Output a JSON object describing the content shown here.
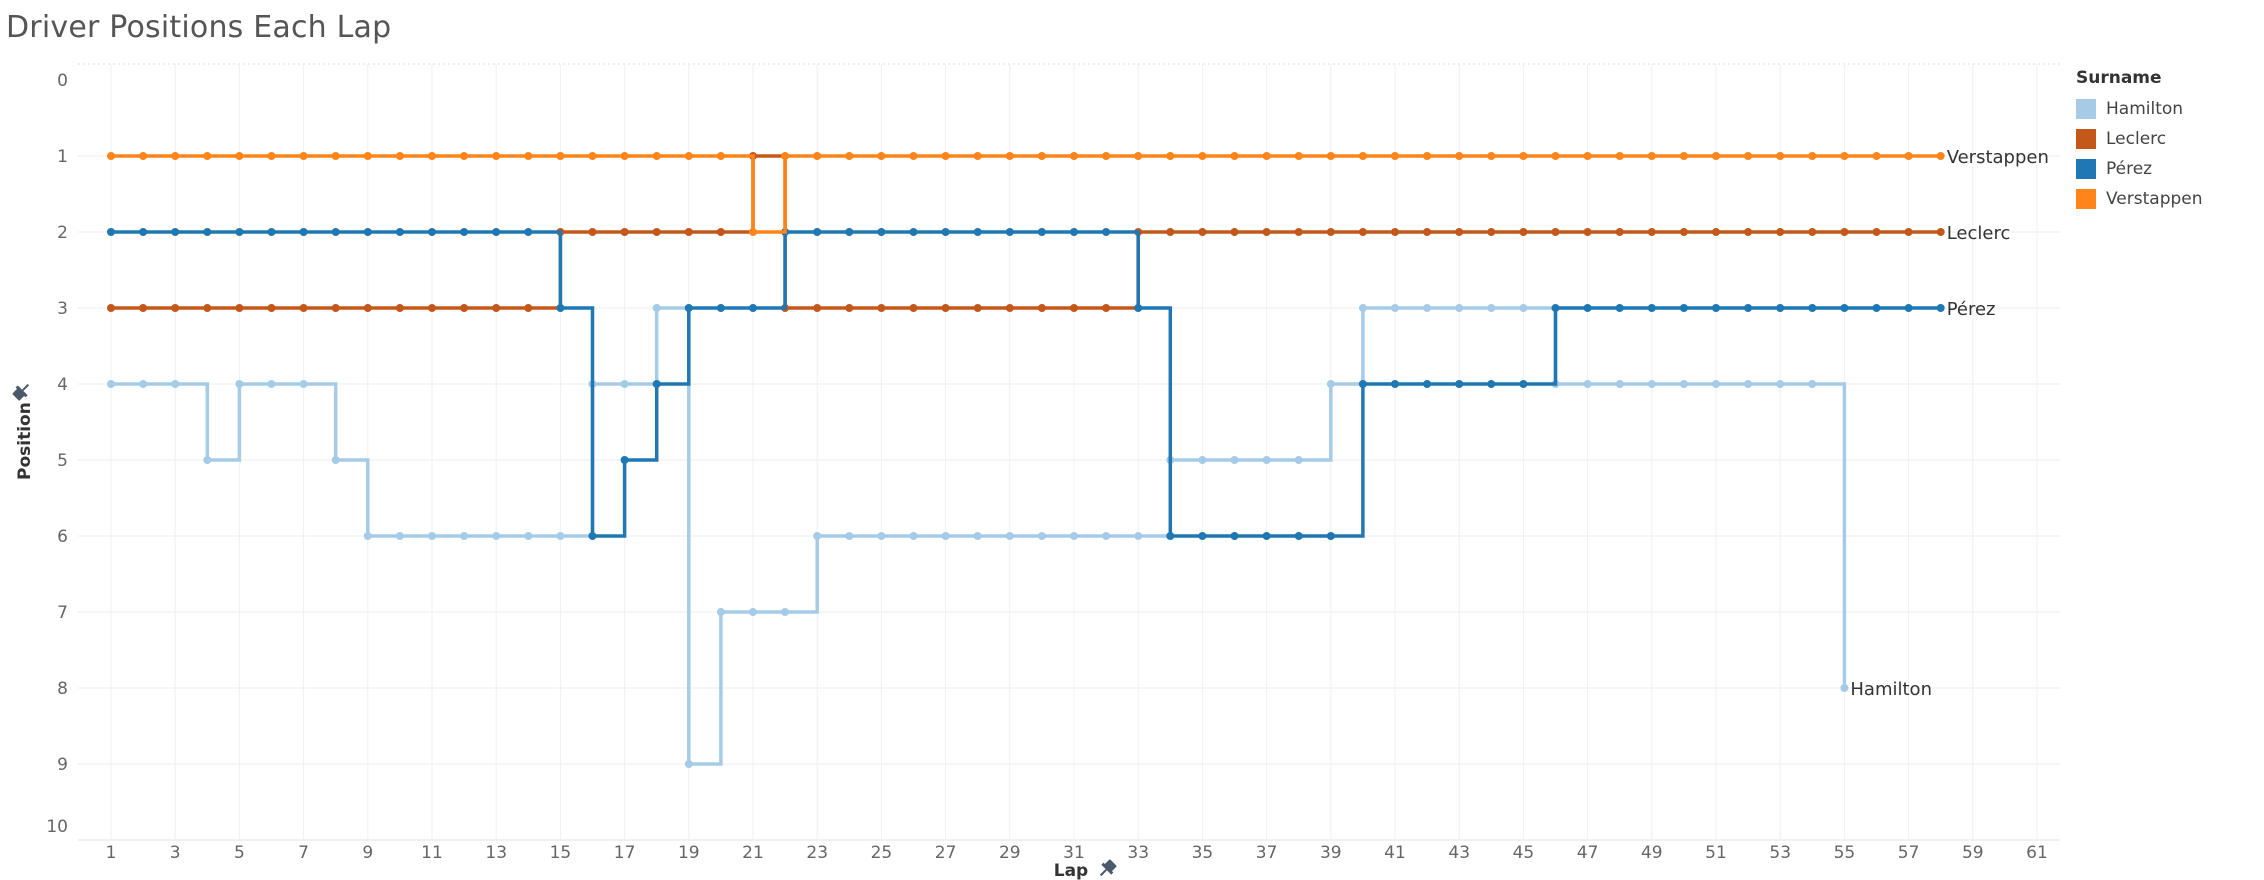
{
  "title": "Driver Positions Each Lap",
  "legend": {
    "title": "Surname",
    "items": [
      {
        "label": "Hamilton",
        "color": "#a6cbe6"
      },
      {
        "label": "Leclerc",
        "color": "#c4581a"
      },
      {
        "label": "Pérez",
        "color": "#1f77b4"
      },
      {
        "label": "Verstappen",
        "color": "#ff8419"
      }
    ]
  },
  "pin_icons": [
    "pin-icon"
  ],
  "chart_data": {
    "type": "line",
    "title": "Driver Positions Each Lap",
    "xlabel": "Lap",
    "ylabel": "Position",
    "xlim": [
      0,
      62
    ],
    "ylim": [
      10,
      0
    ],
    "y_reversed": true,
    "grid": true,
    "legend_position": "right",
    "x_ticks": [
      1,
      3,
      5,
      7,
      9,
      11,
      13,
      15,
      17,
      19,
      21,
      23,
      25,
      27,
      29,
      31,
      33,
      35,
      37,
      39,
      41,
      43,
      45,
      47,
      49,
      51,
      53,
      55,
      57,
      59,
      61
    ],
    "y_ticks": [
      0,
      1,
      2,
      3,
      4,
      5,
      6,
      7,
      8,
      9,
      10
    ],
    "line_shape": "step",
    "series": [
      {
        "name": "Hamilton",
        "color": "#a6cbe6",
        "x": [
          1,
          2,
          3,
          4,
          5,
          6,
          7,
          8,
          9,
          10,
          11,
          12,
          13,
          14,
          15,
          16,
          17,
          18,
          19,
          20,
          21,
          22,
          23,
          24,
          25,
          26,
          27,
          28,
          29,
          30,
          31,
          32,
          33,
          34,
          35,
          36,
          37,
          38,
          39,
          40,
          41,
          42,
          43,
          44,
          45,
          46,
          47,
          48,
          49,
          50,
          51,
          52,
          53,
          54,
          55
        ],
        "values": [
          4,
          4,
          4,
          5,
          4,
          4,
          4,
          5,
          6,
          6,
          6,
          6,
          6,
          6,
          6,
          4,
          4,
          3,
          9,
          7,
          7,
          7,
          6,
          6,
          6,
          6,
          6,
          6,
          6,
          6,
          6,
          6,
          6,
          5,
          5,
          5,
          5,
          5,
          4,
          3,
          3,
          3,
          3,
          3,
          3,
          4,
          4,
          4,
          4,
          4,
          4,
          4,
          4,
          4,
          8
        ],
        "end_label": "Hamilton"
      },
      {
        "name": "Leclerc",
        "color": "#c4581a",
        "x": [
          1,
          2,
          3,
          4,
          5,
          6,
          7,
          8,
          9,
          10,
          11,
          12,
          13,
          14,
          15,
          16,
          17,
          18,
          19,
          20,
          21,
          22,
          23,
          24,
          25,
          26,
          27,
          28,
          29,
          30,
          31,
          32,
          33,
          34,
          35,
          36,
          37,
          38,
          39,
          40,
          41,
          42,
          43,
          44,
          45,
          46,
          47,
          48,
          49,
          50,
          51,
          52,
          53,
          54,
          55,
          56,
          57,
          58
        ],
        "values": [
          3,
          3,
          3,
          3,
          3,
          3,
          3,
          3,
          3,
          3,
          3,
          3,
          3,
          3,
          2,
          2,
          2,
          2,
          2,
          2,
          1,
          3,
          3,
          3,
          3,
          3,
          3,
          3,
          3,
          3,
          3,
          3,
          2,
          2,
          2,
          2,
          2,
          2,
          2,
          2,
          2,
          2,
          2,
          2,
          2,
          2,
          2,
          2,
          2,
          2,
          2,
          2,
          2,
          2,
          2,
          2,
          2,
          2
        ],
        "end_label": "Leclerc"
      },
      {
        "name": "Pérez",
        "color": "#1f77b4",
        "x": [
          1,
          2,
          3,
          4,
          5,
          6,
          7,
          8,
          9,
          10,
          11,
          12,
          13,
          14,
          15,
          16,
          17,
          18,
          19,
          20,
          21,
          22,
          23,
          24,
          25,
          26,
          27,
          28,
          29,
          30,
          31,
          32,
          33,
          34,
          35,
          36,
          37,
          38,
          39,
          40,
          41,
          42,
          43,
          44,
          45,
          46,
          47,
          48,
          49,
          50,
          51,
          52,
          53,
          54,
          55,
          56,
          57,
          58
        ],
        "values": [
          2,
          2,
          2,
          2,
          2,
          2,
          2,
          2,
          2,
          2,
          2,
          2,
          2,
          2,
          3,
          6,
          5,
          4,
          3,
          3,
          3,
          2,
          2,
          2,
          2,
          2,
          2,
          2,
          2,
          2,
          2,
          2,
          3,
          6,
          6,
          6,
          6,
          6,
          6,
          4,
          4,
          4,
          4,
          4,
          4,
          3,
          3,
          3,
          3,
          3,
          3,
          3,
          3,
          3,
          3,
          3,
          3,
          3
        ],
        "end_label": "Pérez"
      },
      {
        "name": "Verstappen",
        "color": "#ff8419",
        "x": [
          1,
          2,
          3,
          4,
          5,
          6,
          7,
          8,
          9,
          10,
          11,
          12,
          13,
          14,
          15,
          16,
          17,
          18,
          19,
          20,
          21,
          22,
          23,
          24,
          25,
          26,
          27,
          28,
          29,
          30,
          31,
          32,
          33,
          34,
          35,
          36,
          37,
          38,
          39,
          40,
          41,
          42,
          43,
          44,
          45,
          46,
          47,
          48,
          49,
          50,
          51,
          52,
          53,
          54,
          55,
          56,
          57,
          58
        ],
        "values": [
          1,
          1,
          1,
          1,
          1,
          1,
          1,
          1,
          1,
          1,
          1,
          1,
          1,
          1,
          1,
          1,
          1,
          1,
          1,
          1,
          2,
          1,
          1,
          1,
          1,
          1,
          1,
          1,
          1,
          1,
          1,
          1,
          1,
          1,
          1,
          1,
          1,
          1,
          1,
          1,
          1,
          1,
          1,
          1,
          1,
          1,
          1,
          1,
          1,
          1,
          1,
          1,
          1,
          1,
          1,
          1,
          1,
          1
        ],
        "end_label": "Verstappen"
      }
    ]
  }
}
